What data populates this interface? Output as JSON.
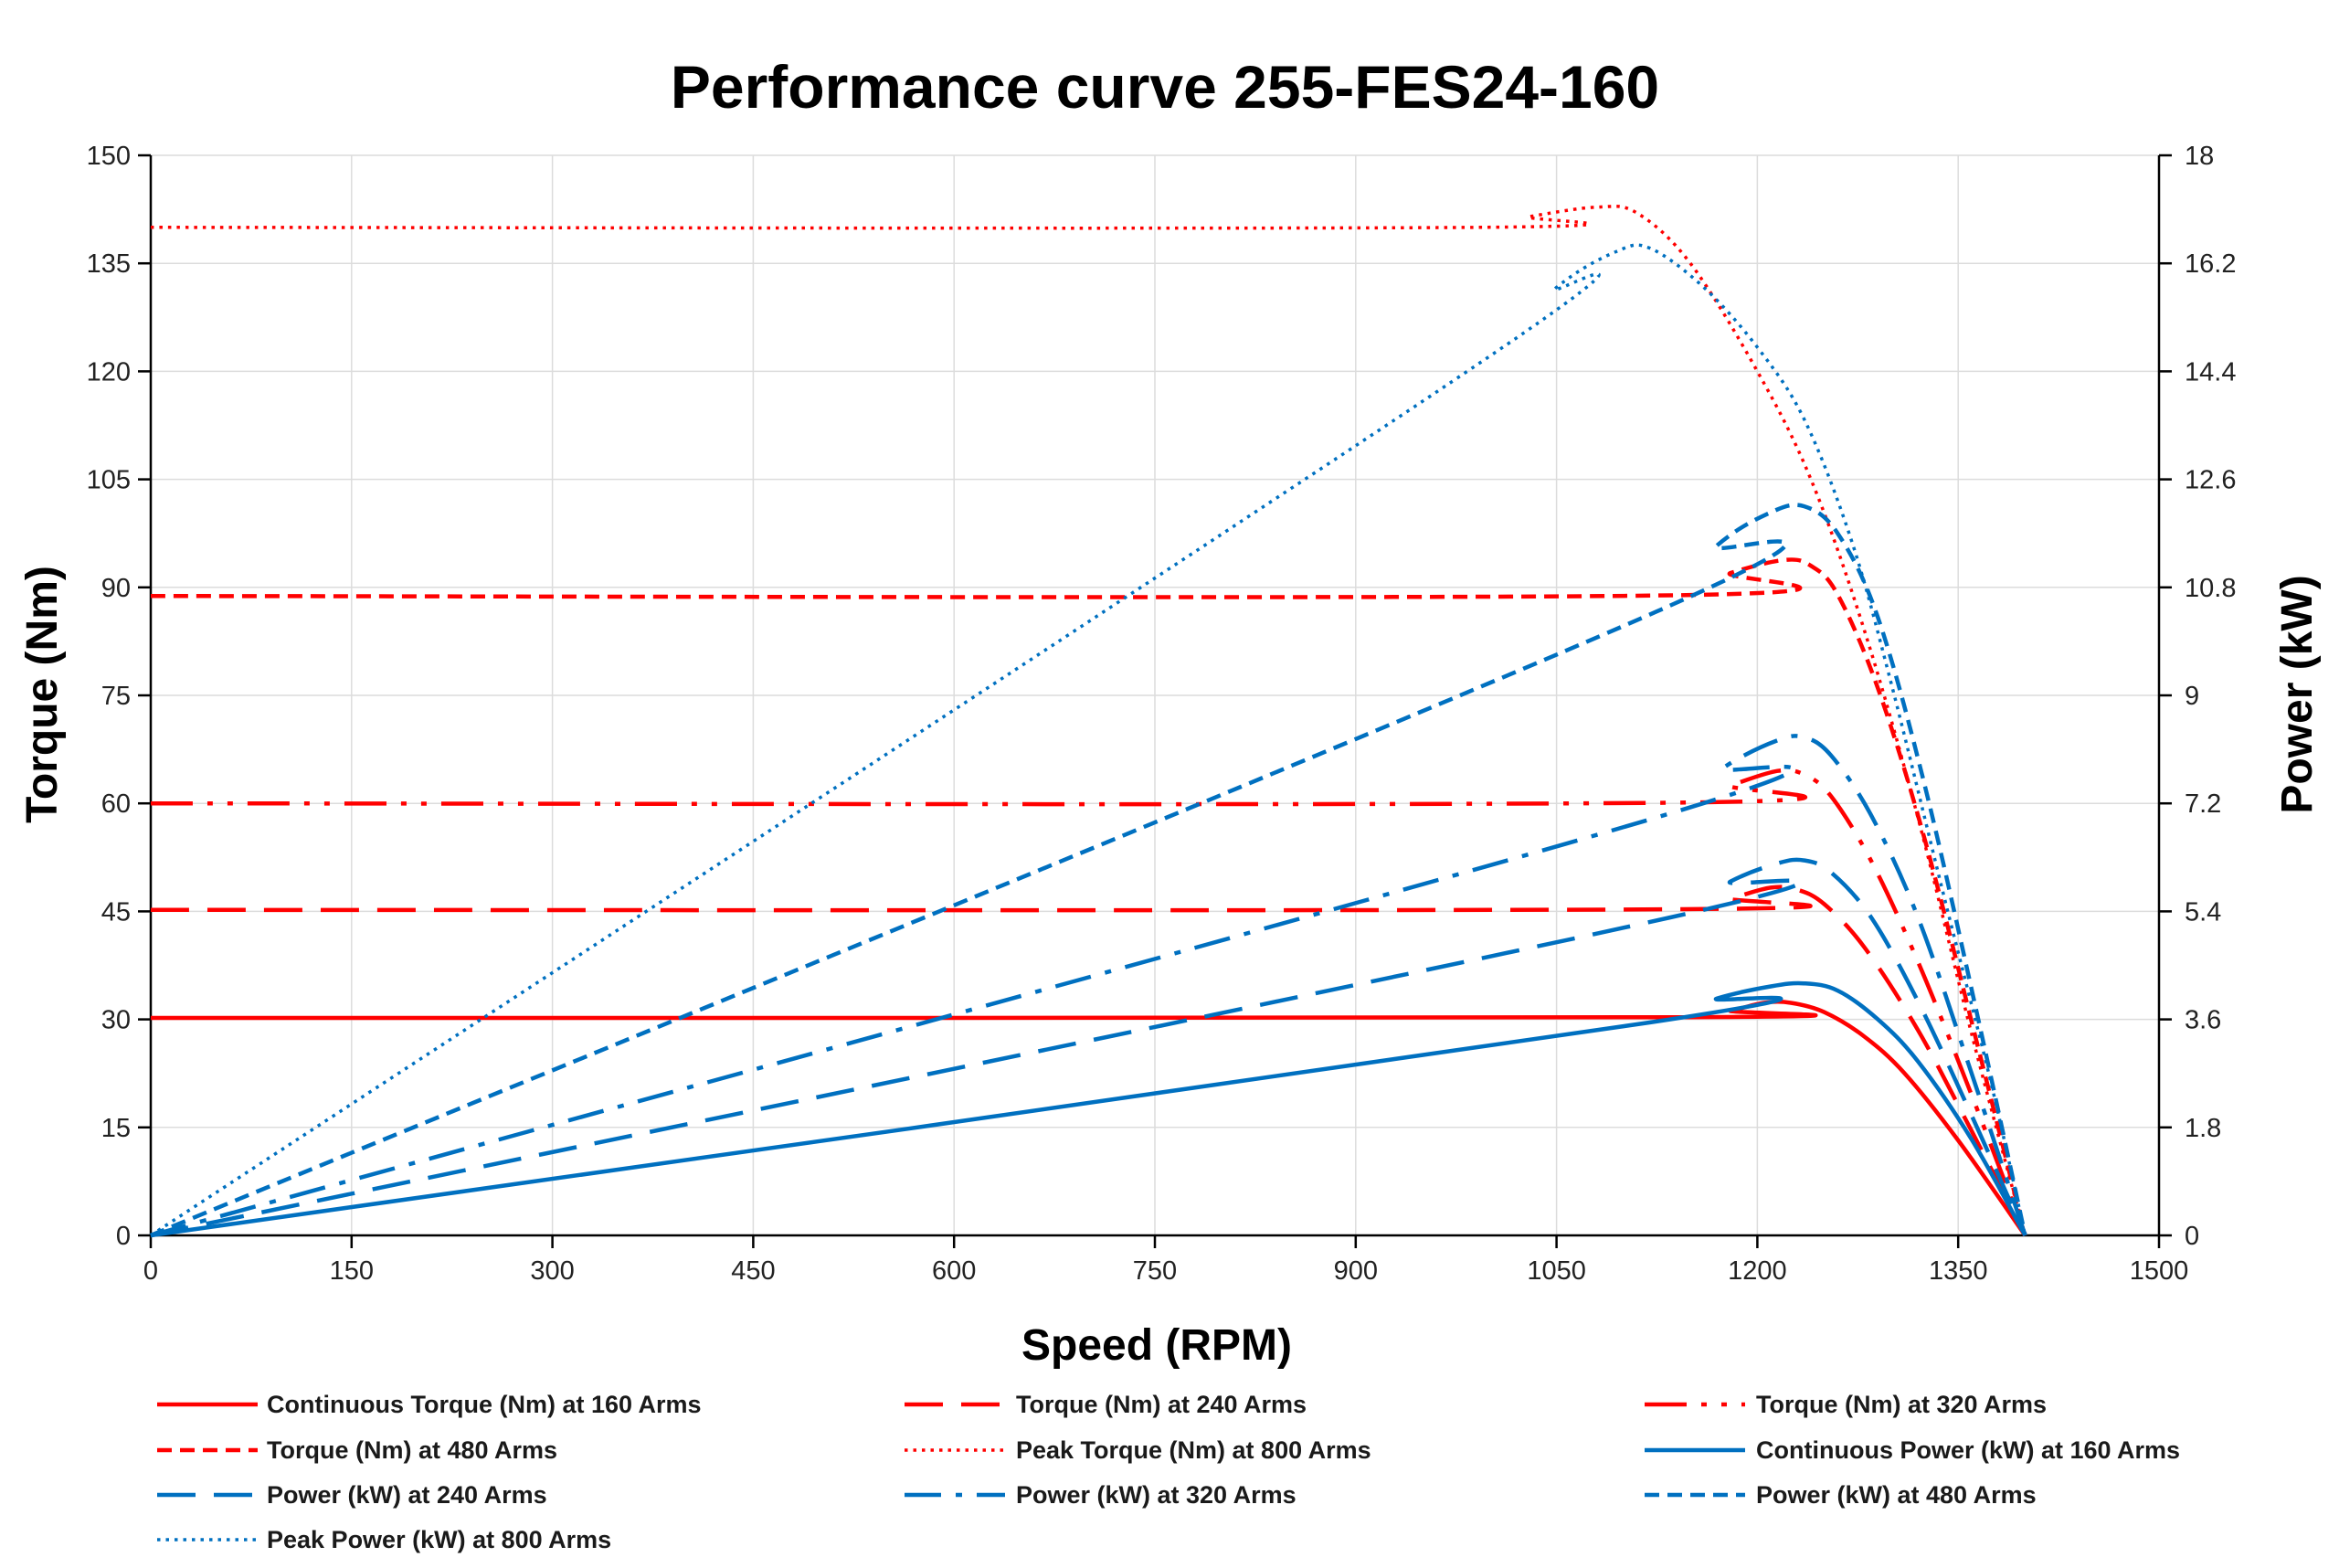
{
  "chart_data": {
    "type": "line",
    "title": "Performance curve 255-FES24-160",
    "xlabel": "Speed (RPM)",
    "ylabel": "Torque (Nm)",
    "y2label": "Power (kW)",
    "xlim": [
      0,
      1500
    ],
    "ylim": [
      0,
      150
    ],
    "y2lim": [
      0,
      18
    ],
    "xticks": [
      0,
      150,
      300,
      450,
      600,
      750,
      900,
      1050,
      1200,
      1350,
      1500
    ],
    "yticks": [
      0,
      15,
      30,
      45,
      60,
      75,
      90,
      105,
      120,
      135,
      150
    ],
    "y2ticks": [
      "0",
      "1.8",
      "3.6",
      "5.4",
      "7.2",
      "9",
      "10.8",
      "12.6",
      "14.4",
      "16.2",
      "18"
    ],
    "grid": true,
    "legend_position": "bottom",
    "colors": {
      "torque": "#ff0000",
      "power": "#0070c0"
    },
    "series": [
      {
        "name": "Continuous Torque (Nm) at 160 Arms",
        "axis": "left",
        "color": "#ff0000",
        "style": "solid",
        "x": [
          0,
          1150,
          1180,
          1205,
          1225,
          1250,
          1280,
          1310,
          1350,
          1400
        ],
        "values": [
          30.2,
          30.3,
          31.2,
          32.3,
          32.3,
          31.0,
          27.6,
          22.5,
          13.2,
          0
        ]
      },
      {
        "name": "Torque (Nm) at 240 Arms",
        "axis": "left",
        "color": "#ff0000",
        "style": "longdash",
        "x": [
          0,
          1145,
          1180,
          1210,
          1230,
          1250,
          1280,
          1320,
          1360,
          1400
        ],
        "values": [
          45.2,
          45.3,
          46.8,
          48.3,
          48.0,
          46.0,
          40.0,
          28.5,
          14.5,
          0
        ]
      },
      {
        "name": "Torque (Nm) at 320 Arms",
        "axis": "left",
        "color": "#ff0000",
        "style": "dashdotdot",
        "x": [
          0,
          1140,
          1180,
          1215,
          1235,
          1255,
          1285,
          1320,
          1360,
          1400
        ],
        "values": [
          60.0,
          60.1,
          62.5,
          64.5,
          64.0,
          61.0,
          52.0,
          38.0,
          19.5,
          0
        ]
      },
      {
        "name": "Torque (Nm) at 480 Arms",
        "axis": "left",
        "color": "#ff0000",
        "style": "dash",
        "x": [
          0,
          1135,
          1180,
          1220,
          1240,
          1260,
          1290,
          1325,
          1365,
          1400
        ],
        "values": [
          88.8,
          88.9,
          92.0,
          93.8,
          93.0,
          89.0,
          76.0,
          55.0,
          26.0,
          0
        ]
      },
      {
        "name": "Peak Torque (Nm) at 800 Arms",
        "axis": "left",
        "color": "#ff0000",
        "style": "dot",
        "x": [
          0,
          990,
          1030,
          1080,
          1110,
          1150,
          1200,
          1240,
          1280,
          1320,
          1360,
          1400
        ],
        "values": [
          140,
          140,
          141.5,
          142.8,
          142.0,
          135.0,
          120.0,
          105.0,
          84.0,
          58.0,
          28.0,
          0
        ]
      },
      {
        "name": "Continuous Power (kW) at 160 Arms",
        "axis": "right",
        "color": "#0070c0",
        "style": "solid",
        "x": [
          0,
          1120,
          1170,
          1210,
          1235,
          1260,
          1290,
          1320,
          1360,
          1400
        ],
        "values": [
          0,
          3.55,
          3.95,
          4.15,
          4.2,
          4.08,
          3.6,
          2.9,
          1.6,
          0
        ]
      },
      {
        "name": "Power (kW) at 240 Arms",
        "axis": "right",
        "color": "#0070c0",
        "style": "longdash",
        "x": [
          0,
          1135,
          1180,
          1215,
          1235,
          1255,
          1285,
          1320,
          1360,
          1400
        ],
        "values": [
          0,
          5.3,
          5.9,
          6.2,
          6.25,
          6.05,
          5.3,
          3.9,
          2.0,
          0
        ]
      },
      {
        "name": "Power (kW) at 320 Arms",
        "axis": "right",
        "color": "#0070c0",
        "style": "dashdot",
        "x": [
          0,
          1130,
          1175,
          1215,
          1235,
          1255,
          1285,
          1320,
          1360,
          1400
        ],
        "values": [
          0,
          7.0,
          7.8,
          8.25,
          8.3,
          8.0,
          7.0,
          5.3,
          2.7,
          0
        ]
      },
      {
        "name": "Power (kW) at 480 Arms",
        "axis": "right",
        "color": "#0070c0",
        "style": "dash",
        "x": [
          0,
          1125,
          1170,
          1210,
          1235,
          1260,
          1290,
          1325,
          1365,
          1400
        ],
        "values": [
          0,
          10.4,
          11.5,
          12.05,
          12.15,
          11.7,
          10.3,
          7.5,
          3.6,
          0
        ]
      },
      {
        "name": "Peak Power (kW) at 800 Arms",
        "axis": "right",
        "color": "#0070c0",
        "style": "dot",
        "x": [
          0,
          990,
          1050,
          1095,
          1120,
          1160,
          1200,
          1235,
          1270,
          1300,
          1340,
          1375,
          1400
        ],
        "values": [
          0,
          14.5,
          15.8,
          16.4,
          16.45,
          15.8,
          14.8,
          13.6,
          11.6,
          9.2,
          5.6,
          2.5,
          0
        ]
      }
    ]
  }
}
